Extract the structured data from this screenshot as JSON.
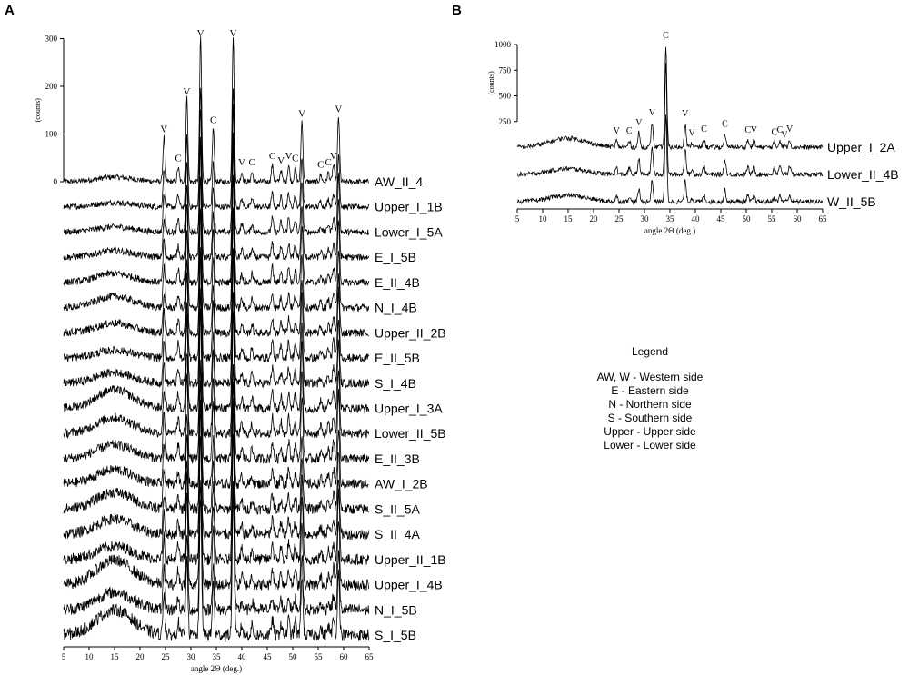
{
  "chart_data": [
    {
      "panel_label": "A",
      "type": "line",
      "xlabel": "angle 2Θ (deg.)",
      "ylabel": "(counts)",
      "xlim": [
        5,
        65
      ],
      "x_ticks": [
        5,
        10,
        15,
        20,
        25,
        30,
        35,
        40,
        45,
        50,
        55,
        60,
        65
      ],
      "y_ticks": [
        0,
        100,
        200,
        300
      ],
      "ylim": [
        0,
        320
      ],
      "grid": false,
      "series": [
        {
          "name": "AW_II_4"
        },
        {
          "name": "Upper_I_1B"
        },
        {
          "name": "Lower_I_5A"
        },
        {
          "name": "E_I_5B"
        },
        {
          "name": "E_II_4B"
        },
        {
          "name": "N_I_4B"
        },
        {
          "name": "Upper_II_2B"
        },
        {
          "name": "E_II_5B"
        },
        {
          "name": "S_I_4B"
        },
        {
          "name": "Upper_I_3A"
        },
        {
          "name": "Lower_II_5B"
        },
        {
          "name": "E_II_3B"
        },
        {
          "name": "AW_I_2B"
        },
        {
          "name": "S_II_5A"
        },
        {
          "name": "S_II_4A"
        },
        {
          "name": "Upper_II_1B"
        },
        {
          "name": "Upper_I_4B"
        },
        {
          "name": "N_I_5B"
        },
        {
          "name": "S_I_5B"
        }
      ],
      "peaks": [
        {
          "x": 24.7,
          "label": "V",
          "top": 95
        },
        {
          "x": 27.5,
          "label": "C",
          "top": 30
        },
        {
          "x": 29.2,
          "label": "V",
          "top": 180
        },
        {
          "x": 31.9,
          "label": "V",
          "top": 310
        },
        {
          "x": 34.4,
          "label": "C",
          "top": 115
        },
        {
          "x": 38.3,
          "label": "V",
          "top": 310
        },
        {
          "x": 40.0,
          "label": "V",
          "top": 20
        },
        {
          "x": 42.0,
          "label": "C",
          "top": 20
        },
        {
          "x": 46.0,
          "label": "C",
          "top": 35
        },
        {
          "x": 47.7,
          "label": "V",
          "top": 25
        },
        {
          "x": 49.2,
          "label": "V",
          "top": 35
        },
        {
          "x": 50.5,
          "label": "C",
          "top": 30
        },
        {
          "x": 51.8,
          "label": "V",
          "top": 130
        },
        {
          "x": 55.5,
          "label": "C",
          "top": 15
        },
        {
          "x": 57.0,
          "label": "C",
          "top": 20
        },
        {
          "x": 58.0,
          "label": "V",
          "top": 35
        },
        {
          "x": 59.0,
          "label": "V",
          "top": 140
        }
      ]
    },
    {
      "panel_label": "B",
      "type": "line",
      "xlabel": "angle 2Θ (deg.)",
      "ylabel": "(counts)",
      "xlim": [
        5,
        65
      ],
      "x_ticks": [
        5,
        10,
        15,
        20,
        25,
        30,
        35,
        40,
        45,
        50,
        55,
        60,
        65
      ],
      "y_ticks": [
        250,
        500,
        750,
        1000
      ],
      "ylim": [
        0,
        1050
      ],
      "grid": false,
      "series": [
        {
          "name": "Upper_I_2A"
        },
        {
          "name": "Lower_II_4B"
        },
        {
          "name": "W_II_5B"
        }
      ],
      "peaks": [
        {
          "x": 24.5,
          "label": "V",
          "top": 60
        },
        {
          "x": 27.0,
          "label": "C",
          "top": 60
        },
        {
          "x": 28.9,
          "label": "V",
          "top": 140
        },
        {
          "x": 31.5,
          "label": "V",
          "top": 240
        },
        {
          "x": 34.2,
          "label": "C",
          "top": 990
        },
        {
          "x": 38.0,
          "label": "V",
          "top": 230
        },
        {
          "x": 39.3,
          "label": "V",
          "top": 40
        },
        {
          "x": 41.7,
          "label": "C",
          "top": 80
        },
        {
          "x": 45.8,
          "label": "C",
          "top": 130
        },
        {
          "x": 50.3,
          "label": "C",
          "top": 70
        },
        {
          "x": 51.5,
          "label": "V",
          "top": 70
        },
        {
          "x": 55.5,
          "label": "C",
          "top": 50
        },
        {
          "x": 56.6,
          "label": "C",
          "top": 70
        },
        {
          "x": 57.5,
          "label": "V",
          "top": 20
        },
        {
          "x": 58.5,
          "label": "V",
          "top": 80
        }
      ]
    }
  ],
  "legend": {
    "title": "Legend",
    "items": [
      "AW, W - Western side",
      "E - Eastern side",
      "N - Northern side",
      "S - Southern side",
      "Upper - Upper side",
      "Lower - Lower side"
    ]
  }
}
